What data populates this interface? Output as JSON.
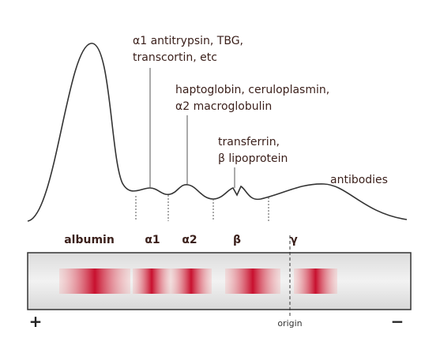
{
  "annotations": {
    "alpha1": [
      "α1 antitrypsin, TBG,",
      "transcortin, etc"
    ],
    "alpha2": [
      "haptoglobin, ceruloplasmin,",
      "α2 macroglobulin"
    ],
    "beta": [
      "transferrin,",
      "β lipoprotein"
    ],
    "gamma": "antibodies"
  },
  "fractions": [
    "albumin",
    "α1",
    "α2",
    "β",
    "γ"
  ],
  "gel": {
    "origin": "origin",
    "anode": "+",
    "cathode": "−"
  }
}
